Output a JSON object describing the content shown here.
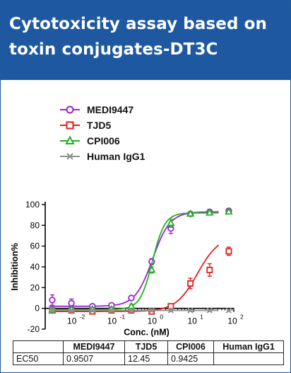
{
  "header": {
    "title_line1": "Cytotoxicity assay based on",
    "title_line2": "toxin conjugates-DT3C",
    "bg_color": "#1e58a0"
  },
  "legend": [
    {
      "name": "MEDI9447",
      "color": "#9b22d4",
      "marker": "circle"
    },
    {
      "name": "TJD5",
      "color": "#e02020",
      "marker": "square"
    },
    {
      "name": "CPI006",
      "color": "#22b022",
      "marker": "triangle"
    },
    {
      "name": "Human IgG1",
      "color": "#909090",
      "marker": "x"
    }
  ],
  "chart_data": {
    "type": "scatter",
    "xlabel": "Conc. (nM)",
    "ylabel": "Inhibition%",
    "xscale": "log",
    "xlim": [
      0.002,
      100
    ],
    "ylim": [
      -20,
      100
    ],
    "yticks": [
      "-20",
      "0",
      "20",
      "40",
      "60",
      "80",
      "100"
    ],
    "xticks": [
      {
        "base": "10",
        "exp": "-2",
        "value": 0.01
      },
      {
        "base": "10",
        "exp": "-1",
        "value": 0.1
      },
      {
        "base": "10",
        "exp": "0",
        "value": 1
      },
      {
        "base": "10",
        "exp": "1",
        "value": 10
      },
      {
        "base": "10",
        "exp": "2",
        "value": 100
      }
    ],
    "series": [
      {
        "name": "MEDI9447",
        "color": "#9b22d4",
        "marker": "circle",
        "x": [
          0.003,
          0.009,
          0.03,
          0.09,
          0.28,
          0.9,
          2.7,
          8.3,
          25,
          75
        ],
        "y": [
          8,
          5,
          2,
          3,
          10,
          45,
          77,
          91,
          93,
          94
        ],
        "err": [
          5,
          4,
          2,
          2,
          2,
          3,
          5,
          2,
          2,
          2
        ],
        "fit": {
          "bottom": 2,
          "top": 93,
          "ec50": 0.9507,
          "hill": 2.0
        }
      },
      {
        "name": "TJD5",
        "color": "#e02020",
        "marker": "square",
        "x": [
          0.003,
          0.009,
          0.03,
          0.09,
          0.28,
          0.9,
          2.7,
          8.3,
          25,
          75
        ],
        "y": [
          -2,
          -2,
          -3,
          -2,
          -2,
          -3,
          2,
          24,
          37,
          55
        ],
        "err": [
          2,
          2,
          2,
          2,
          2,
          2,
          2,
          5,
          6,
          4
        ],
        "fit": {
          "bottom": -3,
          "top": 70,
          "ec50": 12.45,
          "hill": 1.6
        }
      },
      {
        "name": "CPI006",
        "color": "#22b022",
        "marker": "triangle",
        "x": [
          0.003,
          0.009,
          0.03,
          0.09,
          0.28,
          0.9,
          2.7,
          8.3,
          25,
          75
        ],
        "y": [
          -2,
          -1,
          -1,
          -1,
          2,
          37,
          82,
          91,
          92,
          93
        ],
        "err": [
          2,
          2,
          2,
          2,
          2,
          3,
          4,
          2,
          2,
          2
        ],
        "fit": {
          "bottom": -1,
          "top": 92,
          "ec50": 0.9425,
          "hill": 2.8
        }
      },
      {
        "name": "Human IgG1",
        "color": "#909090",
        "marker": "x",
        "x": [
          0.003,
          0.009,
          0.03,
          0.09,
          0.28,
          0.9,
          2.7,
          8.3,
          25,
          75
        ],
        "y": [
          -2,
          -2,
          -2,
          -2,
          -2,
          -2,
          -2,
          -2,
          -2,
          -2
        ],
        "err": [
          1,
          1,
          1,
          1,
          1,
          1,
          1,
          1,
          1,
          1
        ],
        "fit": {
          "bottom": -2,
          "top": -2,
          "ec50": 1,
          "hill": 1
        }
      }
    ]
  },
  "table": {
    "header": [
      "",
      "MEDI9447",
      "TJD5",
      "CPI006",
      "Human IgG1"
    ],
    "row": [
      "EC50",
      "0.9507",
      "12.45",
      "0.9425",
      ""
    ]
  }
}
